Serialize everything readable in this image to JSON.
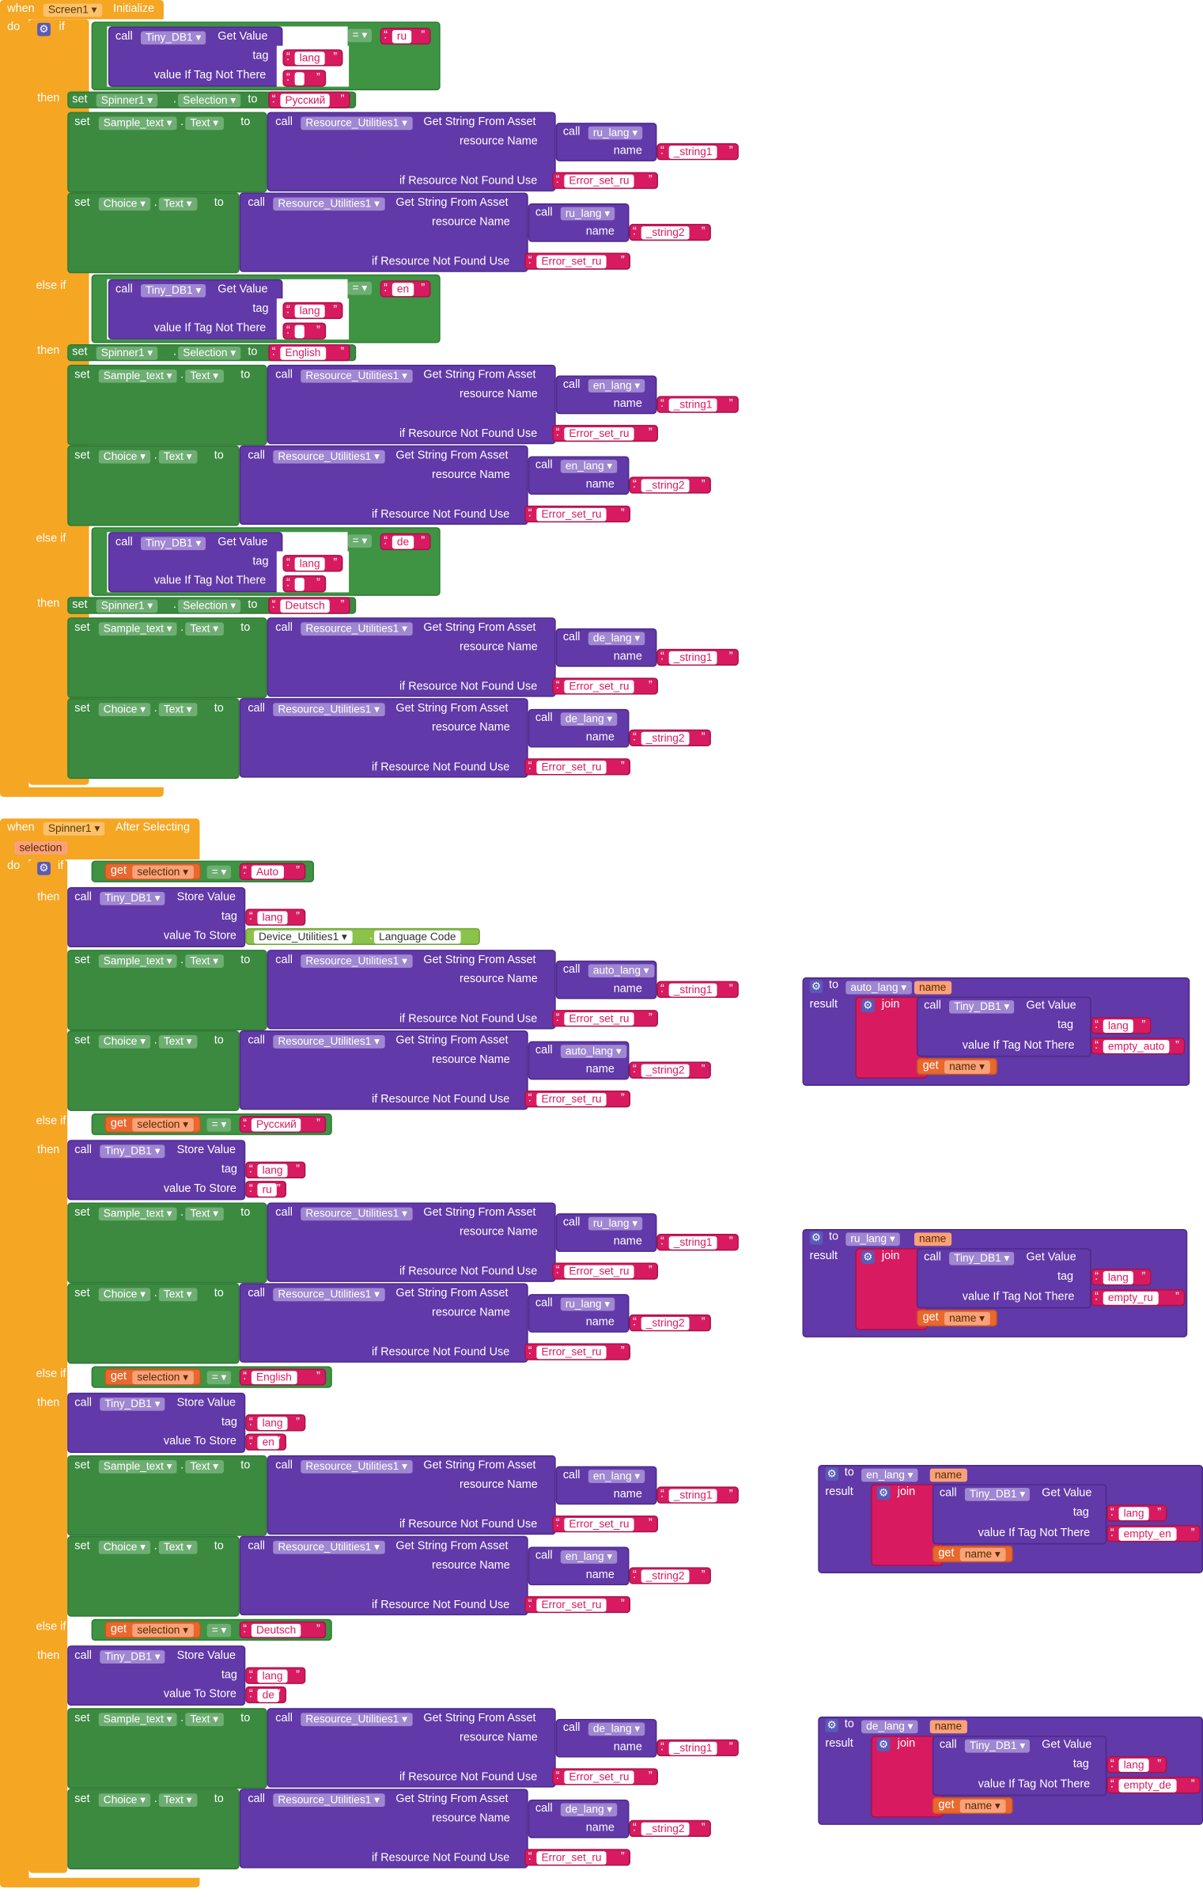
{
  "s1": {
    "when": "when",
    "component": "Screen1",
    "event": "Initialize",
    "do": "do"
  },
  "kw": {
    "if": "if",
    "then": "then",
    "else_if": "else if",
    "set": "set",
    "to": "to",
    "call": "call",
    "tag": "tag",
    "vitnt": "value If Tag Not There",
    "get_value": "Get Value",
    "get_string": "Get String From Asset",
    "resource_name": "resource Name",
    "name": "name",
    "if_not_found": "if Resource Not Found Use",
    "store_value": "Store Value",
    "value_to_store": "value To Store",
    "get": "get",
    "result": "result",
    "join": "join",
    "dot": ".",
    "eq": "=",
    "do": "do",
    "when": "when",
    "language_code": "Language Code"
  },
  "comp": {
    "tinydb": "Tiny_DB1",
    "spinner": "Spinner1",
    "selection": "Selection",
    "sample": "Sample_text",
    "text": "Text",
    "res": "Resource_Utilities1",
    "choice": "Choice",
    "devutil": "Device_Utilities1"
  },
  "str": {
    "lang": "lang",
    "empty": "",
    "string1": "_string1",
    "string2": "_string2",
    "error": "Error_set_ru"
  },
  "langs": [
    {
      "code": "ru",
      "proc": "ru_lang",
      "display": "Русский",
      "empty": "empty_ru"
    },
    {
      "code": "en",
      "proc": "en_lang",
      "display": "English",
      "empty": "empty_en"
    },
    {
      "code": "de",
      "proc": "de_lang",
      "display": "Deutsch",
      "empty": "empty_de"
    }
  ],
  "sp": {
    "component": "Spinner1",
    "event": "After Selecting",
    "param": "selection",
    "auto_display": "Auto",
    "auto_proc": "auto_lang"
  },
  "procs": [
    {
      "name": "auto_lang",
      "param": "name",
      "empty": "empty_auto"
    },
    {
      "name": "ru_lang",
      "param": "name",
      "empty": "empty_ru"
    },
    {
      "name": "en_lang",
      "param": "name",
      "empty": "empty_en"
    },
    {
      "name": "de_lang",
      "param": "name",
      "empty": "empty_de"
    }
  ]
}
